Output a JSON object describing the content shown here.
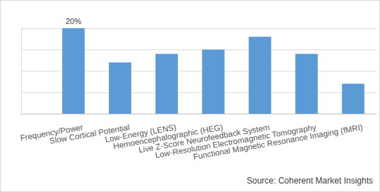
{
  "chart_data": {
    "type": "bar",
    "categories": [
      "Frequency/Power",
      "Slow Cortical Potential",
      "Low-Energy (LENS)",
      "Hemoencephalographic (HEG)",
      "Live Z-Score Neurofeedback System",
      "Low-Resolution Electromagnetic Tomography",
      "Functional Magnetic Resonance Imaging (fMRI)"
    ],
    "values": [
      20,
      12,
      14,
      15,
      18,
      14,
      7
    ],
    "value_labels": [
      "20%",
      null,
      null,
      null,
      null,
      null,
      null
    ],
    "data_labels": true,
    "color": "#5b9bd5",
    "ylim": [
      0,
      20
    ],
    "yticks": [
      0,
      5,
      10,
      15,
      20
    ],
    "grid": true,
    "tick_labels": "x",
    "source": "Source: Coherent Market Insights"
  }
}
